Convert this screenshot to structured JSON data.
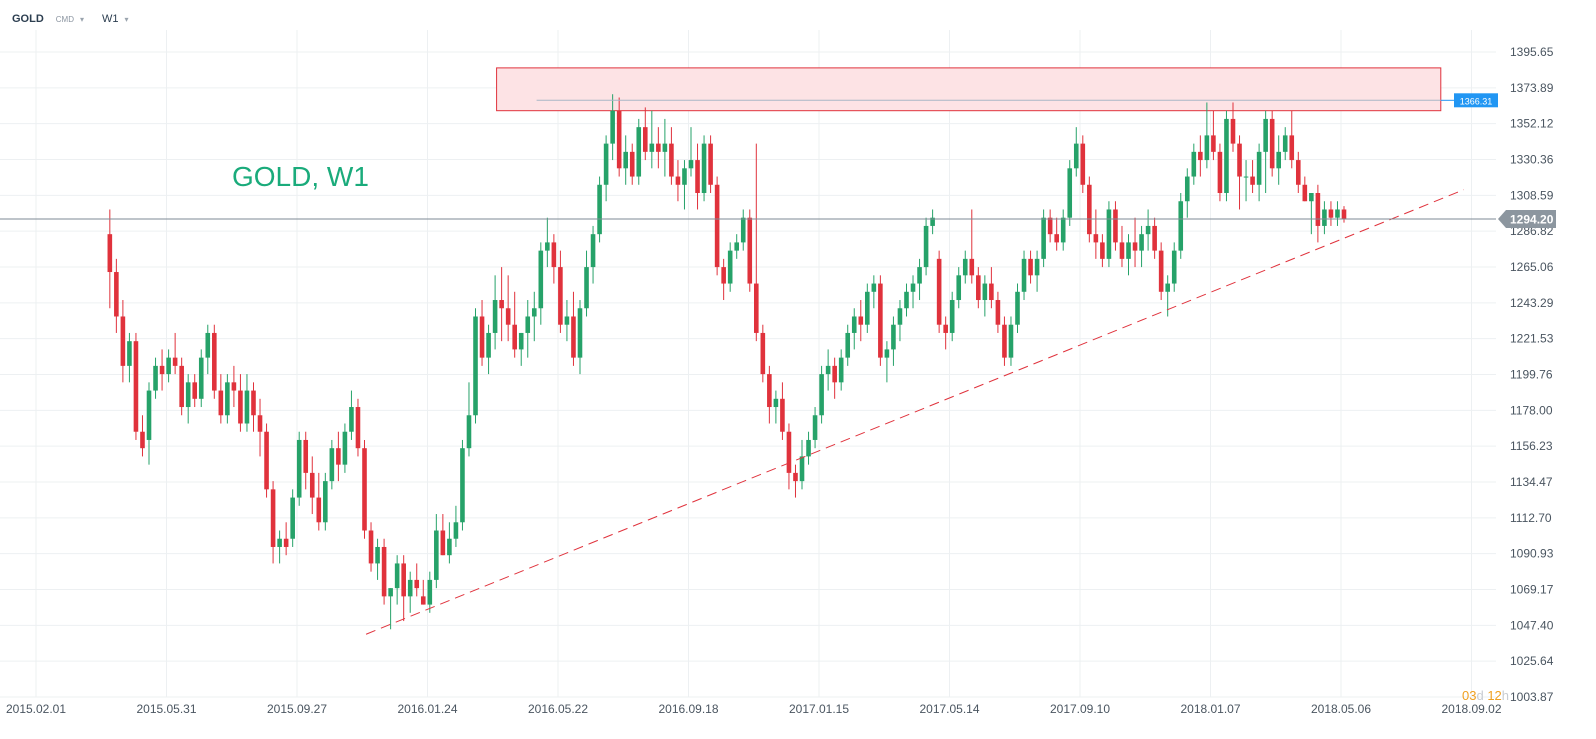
{
  "header": {
    "symbol": "GOLD",
    "tag": "CMD",
    "timeframe": "W1",
    "caret_icon": "chevron-down-icon"
  },
  "timer": {
    "days": "03",
    "days_unit": "d",
    "hours": "12",
    "hours_unit": "h"
  },
  "colors": {
    "up": "#26a269",
    "down": "#e0323c",
    "watermark": "#1aab7b",
    "grid": "#edf0f2",
    "axis_text": "#4a5560",
    "price_line": "#7e8a94",
    "resistance_fill": "#fde3e5",
    "resistance_border": "#e0323c",
    "level_line": "#2196f3",
    "trendline": "#e0323c"
  },
  "chart_data": {
    "type": "candlestick",
    "title": "GOLD, W1",
    "y_ticks": [
      1395.65,
      1373.89,
      1352.12,
      1330.36,
      1308.59,
      1286.82,
      1265.06,
      1243.29,
      1221.53,
      1199.76,
      1178.0,
      1156.23,
      1134.47,
      1112.7,
      1090.93,
      1069.17,
      1047.4,
      1025.64,
      1003.87
    ],
    "x_ticks": [
      "2015.02.01",
      "2015.05.31",
      "2015.09.27",
      "2016.01.24",
      "2016.05.22",
      "2016.09.18",
      "2017.01.15",
      "2017.05.14",
      "2017.09.10",
      "2018.01.07",
      "2018.05.06",
      "2018.09.02"
    ],
    "ylim": [
      1003.87,
      1395.65
    ],
    "grid": true,
    "current_price": "1294.20",
    "level_price": "1366.31",
    "resistance_zone": {
      "low": 1360.0,
      "high": 1386.0,
      "start": "2016.03.27",
      "end": "2018.08.05"
    },
    "trendline": {
      "from": {
        "date": "2015.11.29",
        "price": 1042.0
      },
      "to": {
        "date": "2018.08.26",
        "price": 1312.0
      }
    },
    "candles": [
      [
        1285,
        1300,
        1240,
        1262
      ],
      [
        1262,
        1270,
        1225,
        1235
      ],
      [
        1235,
        1245,
        1195,
        1205
      ],
      [
        1205,
        1225,
        1195,
        1220
      ],
      [
        1220,
        1225,
        1160,
        1165
      ],
      [
        1165,
        1175,
        1150,
        1155
      ],
      [
        1160,
        1195,
        1145,
        1190
      ],
      [
        1190,
        1210,
        1185,
        1205
      ],
      [
        1205,
        1215,
        1190,
        1200
      ],
      [
        1200,
        1215,
        1195,
        1210
      ],
      [
        1210,
        1225,
        1200,
        1205
      ],
      [
        1205,
        1210,
        1175,
        1180
      ],
      [
        1180,
        1200,
        1170,
        1195
      ],
      [
        1195,
        1200,
        1180,
        1185
      ],
      [
        1185,
        1215,
        1180,
        1210
      ],
      [
        1210,
        1230,
        1200,
        1225
      ],
      [
        1225,
        1230,
        1185,
        1190
      ],
      [
        1190,
        1200,
        1170,
        1175
      ],
      [
        1175,
        1200,
        1170,
        1195
      ],
      [
        1195,
        1205,
        1180,
        1190
      ],
      [
        1190,
        1200,
        1165,
        1170
      ],
      [
        1170,
        1200,
        1165,
        1190
      ],
      [
        1190,
        1195,
        1165,
        1175
      ],
      [
        1175,
        1185,
        1150,
        1165
      ],
      [
        1165,
        1170,
        1125,
        1130
      ],
      [
        1130,
        1135,
        1085,
        1095
      ],
      [
        1095,
        1105,
        1085,
        1100
      ],
      [
        1100,
        1110,
        1090,
        1095
      ],
      [
        1100,
        1130,
        1095,
        1125
      ],
      [
        1125,
        1165,
        1120,
        1160
      ],
      [
        1160,
        1165,
        1130,
        1140
      ],
      [
        1140,
        1150,
        1115,
        1125
      ],
      [
        1125,
        1140,
        1105,
        1110
      ],
      [
        1110,
        1140,
        1105,
        1135
      ],
      [
        1135,
        1160,
        1130,
        1155
      ],
      [
        1155,
        1165,
        1135,
        1145
      ],
      [
        1145,
        1170,
        1140,
        1165
      ],
      [
        1165,
        1190,
        1160,
        1180
      ],
      [
        1180,
        1185,
        1150,
        1155
      ],
      [
        1155,
        1160,
        1100,
        1105
      ],
      [
        1105,
        1110,
        1080,
        1085
      ],
      [
        1085,
        1100,
        1075,
        1095
      ],
      [
        1095,
        1100,
        1060,
        1065
      ],
      [
        1065,
        1070,
        1045,
        1070
      ],
      [
        1070,
        1090,
        1060,
        1085
      ],
      [
        1085,
        1090,
        1050,
        1065
      ],
      [
        1065,
        1080,
        1055,
        1075
      ],
      [
        1075,
        1085,
        1065,
        1070
      ],
      [
        1065,
        1075,
        1060,
        1060
      ],
      [
        1060,
        1080,
        1055,
        1075
      ],
      [
        1075,
        1115,
        1070,
        1105
      ],
      [
        1105,
        1115,
        1090,
        1090
      ],
      [
        1090,
        1110,
        1085,
        1100
      ],
      [
        1100,
        1120,
        1095,
        1110
      ],
      [
        1110,
        1160,
        1105,
        1155
      ],
      [
        1155,
        1195,
        1150,
        1175
      ],
      [
        1175,
        1240,
        1170,
        1235
      ],
      [
        1235,
        1245,
        1205,
        1210
      ],
      [
        1210,
        1230,
        1200,
        1225
      ],
      [
        1225,
        1260,
        1215,
        1245
      ],
      [
        1245,
        1265,
        1220,
        1240
      ],
      [
        1240,
        1260,
        1220,
        1230
      ],
      [
        1230,
        1250,
        1210,
        1215
      ],
      [
        1215,
        1225,
        1205,
        1225
      ],
      [
        1225,
        1245,
        1210,
        1235
      ],
      [
        1235,
        1250,
        1220,
        1240
      ],
      [
        1240,
        1280,
        1230,
        1275
      ],
      [
        1275,
        1295,
        1265,
        1280
      ],
      [
        1280,
        1285,
        1255,
        1265
      ],
      [
        1265,
        1275,
        1225,
        1230
      ],
      [
        1230,
        1245,
        1220,
        1235
      ],
      [
        1235,
        1250,
        1205,
        1210
      ],
      [
        1210,
        1245,
        1200,
        1240
      ],
      [
        1240,
        1275,
        1235,
        1265
      ],
      [
        1265,
        1290,
        1255,
        1285
      ],
      [
        1285,
        1320,
        1280,
        1315
      ],
      [
        1315,
        1345,
        1305,
        1340
      ],
      [
        1340,
        1370,
        1330,
        1360
      ],
      [
        1360,
        1368,
        1320,
        1325
      ],
      [
        1325,
        1345,
        1315,
        1335
      ],
      [
        1335,
        1340,
        1315,
        1320
      ],
      [
        1320,
        1355,
        1315,
        1350
      ],
      [
        1350,
        1362,
        1330,
        1335
      ],
      [
        1335,
        1360,
        1325,
        1340
      ],
      [
        1340,
        1350,
        1325,
        1335
      ],
      [
        1335,
        1355,
        1320,
        1340
      ],
      [
        1340,
        1350,
        1315,
        1320
      ],
      [
        1320,
        1330,
        1305,
        1315
      ],
      [
        1315,
        1330,
        1300,
        1325
      ],
      [
        1325,
        1350,
        1320,
        1330
      ],
      [
        1330,
        1340,
        1300,
        1310
      ],
      [
        1310,
        1345,
        1305,
        1340
      ],
      [
        1340,
        1345,
        1310,
        1315
      ],
      [
        1315,
        1320,
        1260,
        1265
      ],
      [
        1265,
        1270,
        1245,
        1255
      ],
      [
        1255,
        1280,
        1250,
        1275
      ],
      [
        1275,
        1285,
        1270,
        1280
      ],
      [
        1280,
        1300,
        1275,
        1295
      ],
      [
        1295,
        1300,
        1250,
        1255
      ],
      [
        1255,
        1340,
        1220,
        1225
      ],
      [
        1225,
        1230,
        1195,
        1200
      ],
      [
        1200,
        1205,
        1170,
        1180
      ],
      [
        1180,
        1190,
        1170,
        1185
      ],
      [
        1185,
        1195,
        1160,
        1165
      ],
      [
        1165,
        1170,
        1130,
        1140
      ],
      [
        1140,
        1145,
        1125,
        1135
      ],
      [
        1135,
        1160,
        1130,
        1150
      ],
      [
        1150,
        1165,
        1145,
        1160
      ],
      [
        1160,
        1180,
        1155,
        1175
      ],
      [
        1175,
        1205,
        1170,
        1200
      ],
      [
        1200,
        1215,
        1190,
        1205
      ],
      [
        1205,
        1210,
        1185,
        1195
      ],
      [
        1195,
        1215,
        1190,
        1210
      ],
      [
        1210,
        1230,
        1205,
        1225
      ],
      [
        1225,
        1240,
        1215,
        1235
      ],
      [
        1235,
        1245,
        1220,
        1230
      ],
      [
        1230,
        1255,
        1225,
        1250
      ],
      [
        1250,
        1260,
        1240,
        1255
      ],
      [
        1255,
        1260,
        1205,
        1210
      ],
      [
        1210,
        1220,
        1195,
        1215
      ],
      [
        1215,
        1235,
        1205,
        1230
      ],
      [
        1230,
        1245,
        1220,
        1240
      ],
      [
        1240,
        1255,
        1235,
        1250
      ],
      [
        1250,
        1260,
        1240,
        1255
      ],
      [
        1255,
        1270,
        1245,
        1265
      ],
      [
        1265,
        1295,
        1260,
        1290
      ],
      [
        1290,
        1300,
        1285,
        1295
      ],
      [
        1270,
        1275,
        1225,
        1230
      ],
      [
        1230,
        1235,
        1215,
        1225
      ],
      [
        1225,
        1250,
        1220,
        1245
      ],
      [
        1245,
        1265,
        1240,
        1260
      ],
      [
        1260,
        1275,
        1255,
        1270
      ],
      [
        1270,
        1300,
        1255,
        1260
      ],
      [
        1260,
        1265,
        1240,
        1245
      ],
      [
        1245,
        1260,
        1235,
        1255
      ],
      [
        1255,
        1265,
        1240,
        1245
      ],
      [
        1245,
        1250,
        1225,
        1230
      ],
      [
        1230,
        1235,
        1205,
        1210
      ],
      [
        1210,
        1235,
        1205,
        1230
      ],
      [
        1230,
        1255,
        1225,
        1250
      ],
      [
        1250,
        1275,
        1245,
        1270
      ],
      [
        1270,
        1275,
        1255,
        1260
      ],
      [
        1260,
        1275,
        1250,
        1270
      ],
      [
        1270,
        1300,
        1265,
        1295
      ],
      [
        1295,
        1300,
        1280,
        1285
      ],
      [
        1285,
        1295,
        1275,
        1280
      ],
      [
        1280,
        1300,
        1275,
        1295
      ],
      [
        1295,
        1330,
        1290,
        1325
      ],
      [
        1325,
        1350,
        1320,
        1340
      ],
      [
        1340,
        1345,
        1310,
        1315
      ],
      [
        1315,
        1320,
        1280,
        1285
      ],
      [
        1285,
        1300,
        1270,
        1280
      ],
      [
        1280,
        1285,
        1265,
        1270
      ],
      [
        1270,
        1305,
        1265,
        1300
      ],
      [
        1300,
        1305,
        1275,
        1280
      ],
      [
        1280,
        1290,
        1265,
        1270
      ],
      [
        1270,
        1285,
        1260,
        1280
      ],
      [
        1280,
        1295,
        1265,
        1275
      ],
      [
        1275,
        1290,
        1265,
        1285
      ],
      [
        1285,
        1300,
        1275,
        1290
      ],
      [
        1290,
        1295,
        1270,
        1275
      ],
      [
        1275,
        1280,
        1245,
        1250
      ],
      [
        1250,
        1260,
        1235,
        1255
      ],
      [
        1255,
        1280,
        1250,
        1275
      ],
      [
        1275,
        1310,
        1270,
        1305
      ],
      [
        1305,
        1325,
        1295,
        1320
      ],
      [
        1320,
        1340,
        1315,
        1335
      ],
      [
        1335,
        1345,
        1320,
        1330
      ],
      [
        1330,
        1365,
        1325,
        1345
      ],
      [
        1345,
        1360,
        1330,
        1335
      ],
      [
        1335,
        1340,
        1305,
        1310
      ],
      [
        1310,
        1360,
        1305,
        1355
      ],
      [
        1355,
        1365,
        1335,
        1340
      ],
      [
        1340,
        1345,
        1300,
        1320
      ],
      [
        1320,
        1330,
        1305,
        1320
      ],
      [
        1320,
        1330,
        1310,
        1315
      ],
      [
        1315,
        1340,
        1305,
        1335
      ],
      [
        1335,
        1360,
        1310,
        1355
      ],
      [
        1355,
        1360,
        1320,
        1325
      ],
      [
        1325,
        1345,
        1315,
        1335
      ],
      [
        1335,
        1350,
        1330,
        1345
      ],
      [
        1345,
        1360,
        1325,
        1330
      ],
      [
        1330,
        1335,
        1310,
        1315
      ],
      [
        1315,
        1320,
        1305,
        1305
      ],
      [
        1305,
        1310,
        1285,
        1310
      ],
      [
        1310,
        1315,
        1280,
        1290
      ],
      [
        1290,
        1305,
        1285,
        1300
      ],
      [
        1300,
        1305,
        1290,
        1295
      ],
      [
        1295,
        1305,
        1290,
        1300
      ],
      [
        1300,
        1302,
        1292,
        1294.2
      ]
    ]
  }
}
